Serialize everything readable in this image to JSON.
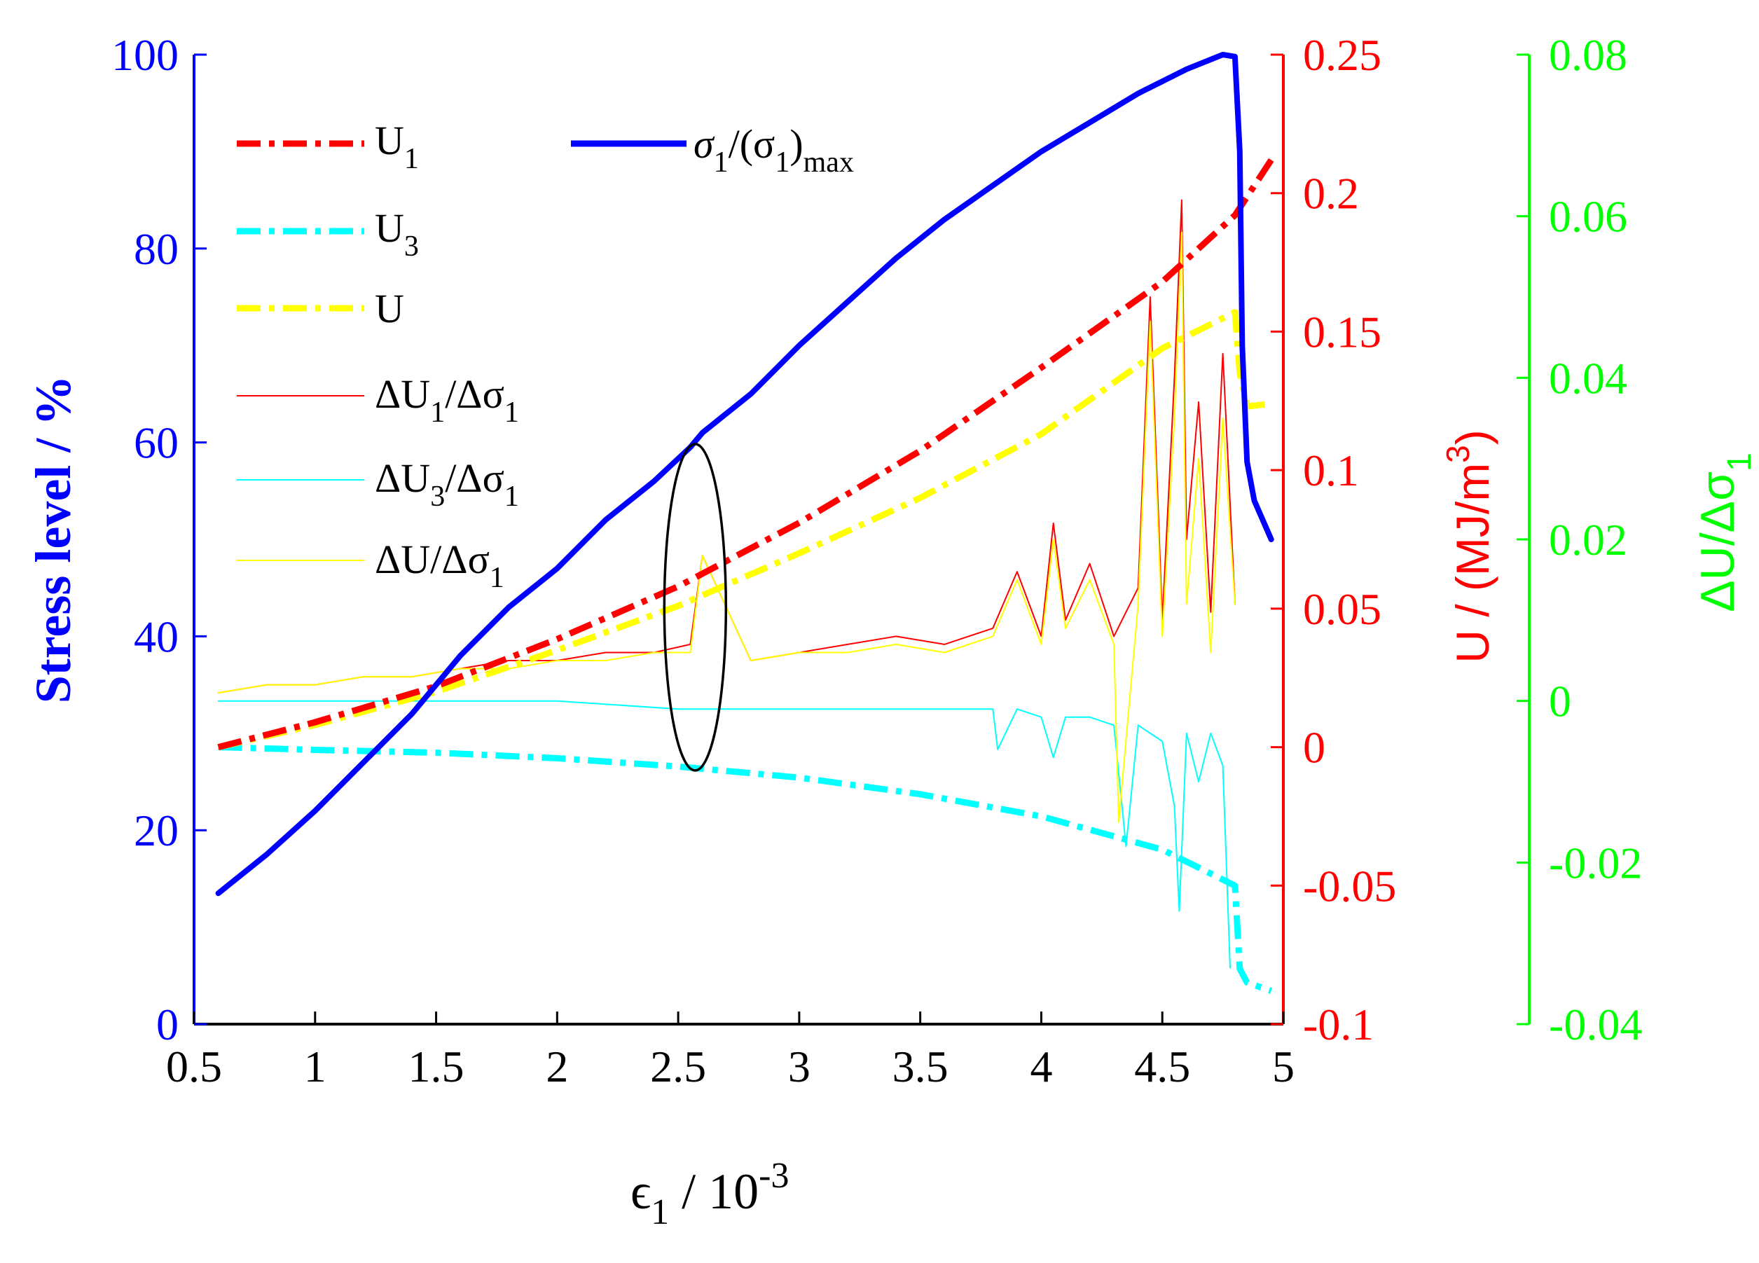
{
  "chart_data": {
    "type": "line",
    "colors": {
      "blue": "#0000ff",
      "red": "#ff0000",
      "green": "#00ff00",
      "cyan": "#00ffff",
      "yellow": "#ffff00",
      "black": "#000000"
    },
    "x_axis": {
      "label_main": "ϵ",
      "label_sub": "1",
      "label_rest": " / 10",
      "label_sup": "-3",
      "range": [
        0.5,
        5
      ],
      "ticks": [
        0.5,
        1,
        1.5,
        2,
        2.5,
        3,
        3.5,
        4,
        4.5,
        5
      ],
      "tick_labels": [
        "0.5",
        "1",
        "1.5",
        "2",
        "2.5",
        "3",
        "3.5",
        "4",
        "4.5",
        "5"
      ]
    },
    "y_axis_left": {
      "label": "Stress level / %",
      "range": [
        0,
        100
      ],
      "ticks": [
        0,
        20,
        40,
        60,
        80,
        100
      ],
      "tick_labels": [
        "0",
        "20",
        "40",
        "60",
        "80",
        "100"
      ]
    },
    "y_axis_right1": {
      "label_main": "U / (MJ/m",
      "label_sup": "3",
      "label_end": ")",
      "range": [
        -0.1,
        0.25
      ],
      "ticks": [
        -0.1,
        -0.05,
        0,
        0.05,
        0.1,
        0.15,
        0.2,
        0.25
      ],
      "tick_labels": [
        "-0.1",
        "-0.05",
        "0",
        "0.05",
        "0.1",
        "0.15",
        "0.2",
        "0.25"
      ]
    },
    "y_axis_right2": {
      "label_main": "ΔU/Δσ",
      "label_sub": "1",
      "range": [
        -0.04,
        0.08
      ],
      "ticks": [
        -0.04,
        -0.02,
        0,
        0.02,
        0.04,
        0.06,
        0.08
      ],
      "tick_labels": [
        "-0.04",
        "-0.02",
        "0",
        "0.02",
        "0.04",
        "0.06",
        "0.08"
      ]
    },
    "legend": {
      "items": [
        {
          "key": "U1",
          "main": "U",
          "sub": "1"
        },
        {
          "key": "U3",
          "main": "U",
          "sub": "3"
        },
        {
          "key": "U",
          "main": "U"
        },
        {
          "key": "dU1",
          "main": "ΔU",
          "sub": "1",
          "rest": "/Δσ",
          "sub2": "1"
        },
        {
          "key": "dU3",
          "main": "ΔU",
          "sub": "3",
          "rest": "/Δσ",
          "sub2": "1"
        },
        {
          "key": "dU",
          "main": "ΔU/Δσ",
          "sub": "1"
        },
        {
          "key": "stress",
          "main": "σ",
          "sub": "1",
          "rest": "/(σ",
          "sub2": "1",
          "rest2": ")",
          "sub3": "max"
        }
      ]
    },
    "series": [
      {
        "name": "σ1/(σ1)max",
        "axis": "left",
        "color": "blue",
        "style": "solid-thick",
        "x": [
          0.6,
          0.8,
          1.0,
          1.2,
          1.4,
          1.6,
          1.8,
          2.0,
          2.2,
          2.4,
          2.55,
          2.6,
          2.8,
          3.0,
          3.2,
          3.4,
          3.6,
          3.8,
          4.0,
          4.2,
          4.4,
          4.6,
          4.75,
          4.8,
          4.82,
          4.83,
          4.85,
          4.88,
          4.95
        ],
        "y": [
          13.5,
          17.5,
          22,
          27,
          32,
          38,
          43,
          47,
          52,
          56,
          59.5,
          61,
          65,
          70,
          74.5,
          79,
          83,
          86.5,
          90,
          93,
          96,
          98.5,
          100,
          99.8,
          90,
          70,
          58,
          54,
          50
        ]
      },
      {
        "name": "U1",
        "axis": "right1",
        "color": "red",
        "style": "dashdot-thick",
        "x": [
          0.6,
          1.0,
          1.5,
          2.0,
          2.5,
          3.0,
          3.5,
          4.0,
          4.5,
          4.8,
          4.95
        ],
        "y": [
          0.0,
          0.009,
          0.022,
          0.039,
          0.058,
          0.081,
          0.107,
          0.137,
          0.168,
          0.192,
          0.212
        ]
      },
      {
        "name": "U3",
        "axis": "right1",
        "color": "cyan",
        "style": "dashdot-thick",
        "x": [
          0.6,
          1.0,
          1.5,
          2.0,
          2.5,
          3.0,
          3.5,
          4.0,
          4.5,
          4.8,
          4.82,
          4.85,
          4.95
        ],
        "y": [
          0.0,
          -0.001,
          -0.002,
          -0.004,
          -0.007,
          -0.011,
          -0.017,
          -0.025,
          -0.037,
          -0.05,
          -0.08,
          -0.085,
          -0.088
        ]
      },
      {
        "name": "U",
        "axis": "right1",
        "color": "yellow",
        "style": "dashdot-thick",
        "x": [
          0.6,
          1.0,
          1.5,
          2.0,
          2.5,
          3.0,
          3.5,
          4.0,
          4.5,
          4.8,
          4.82,
          4.85,
          4.95
        ],
        "y": [
          0.0,
          0.008,
          0.02,
          0.035,
          0.051,
          0.07,
          0.09,
          0.113,
          0.144,
          0.157,
          0.135,
          0.123,
          0.124
        ]
      },
      {
        "name": "ΔU1/Δσ1",
        "axis": "right2",
        "color": "red",
        "style": "thin",
        "x": [
          0.6,
          0.8,
          1.0,
          1.2,
          1.4,
          1.6,
          1.8,
          2.0,
          2.2,
          2.4,
          2.55,
          2.6,
          2.8,
          3.0,
          3.2,
          3.4,
          3.6,
          3.8,
          3.9,
          4.0,
          4.05,
          4.1,
          4.2,
          4.3,
          4.4,
          4.45,
          4.5,
          4.55,
          4.58,
          4.6,
          4.65,
          4.7,
          4.75,
          4.8
        ],
        "y": [
          0.001,
          0.002,
          0.002,
          0.003,
          0.003,
          0.004,
          0.005,
          0.005,
          0.006,
          0.006,
          0.007,
          0.018,
          0.005,
          0.006,
          0.007,
          0.008,
          0.007,
          0.009,
          0.016,
          0.008,
          0.022,
          0.01,
          0.017,
          0.008,
          0.014,
          0.05,
          0.01,
          0.04,
          0.062,
          0.02,
          0.037,
          0.011,
          0.043,
          0.012
        ]
      },
      {
        "name": "ΔU3/Δσ1",
        "axis": "right2",
        "color": "cyan",
        "style": "thin",
        "x": [
          0.6,
          1.0,
          1.5,
          2.0,
          2.5,
          3.0,
          3.5,
          3.8,
          3.82,
          3.9,
          4.0,
          4.05,
          4.1,
          4.2,
          4.3,
          4.35,
          4.4,
          4.5,
          4.55,
          4.57,
          4.6,
          4.65,
          4.7,
          4.75,
          4.78
        ],
        "y": [
          0.0,
          0.0,
          0.0,
          0.0,
          -0.001,
          -0.001,
          -0.001,
          -0.001,
          -0.006,
          -0.001,
          -0.002,
          -0.007,
          -0.002,
          -0.002,
          -0.003,
          -0.018,
          -0.003,
          -0.005,
          -0.013,
          -0.026,
          -0.004,
          -0.01,
          -0.004,
          -0.008,
          -0.033
        ]
      },
      {
        "name": "ΔU/Δσ1",
        "axis": "right2",
        "color": "yellow",
        "style": "thin",
        "x": [
          0.6,
          0.8,
          1.0,
          1.2,
          1.4,
          1.6,
          1.8,
          2.0,
          2.2,
          2.4,
          2.55,
          2.6,
          2.8,
          3.0,
          3.2,
          3.4,
          3.6,
          3.8,
          3.9,
          4.0,
          4.05,
          4.1,
          4.2,
          4.3,
          4.32,
          4.4,
          4.45,
          4.5,
          4.55,
          4.58,
          4.6,
          4.65,
          4.7,
          4.75,
          4.8
        ],
        "y": [
          0.001,
          0.002,
          0.002,
          0.003,
          0.003,
          0.004,
          0.004,
          0.005,
          0.005,
          0.006,
          0.006,
          0.018,
          0.005,
          0.006,
          0.006,
          0.007,
          0.006,
          0.008,
          0.015,
          0.007,
          0.02,
          0.009,
          0.015,
          0.007,
          -0.015,
          0.012,
          0.047,
          0.008,
          0.035,
          0.058,
          0.012,
          0.03,
          0.006,
          0.035,
          0.012
        ]
      }
    ],
    "annotations": [
      {
        "type": "ellipse",
        "x_center": 2.57,
        "y_center_left_axis": 43,
        "color": "black"
      }
    ]
  }
}
